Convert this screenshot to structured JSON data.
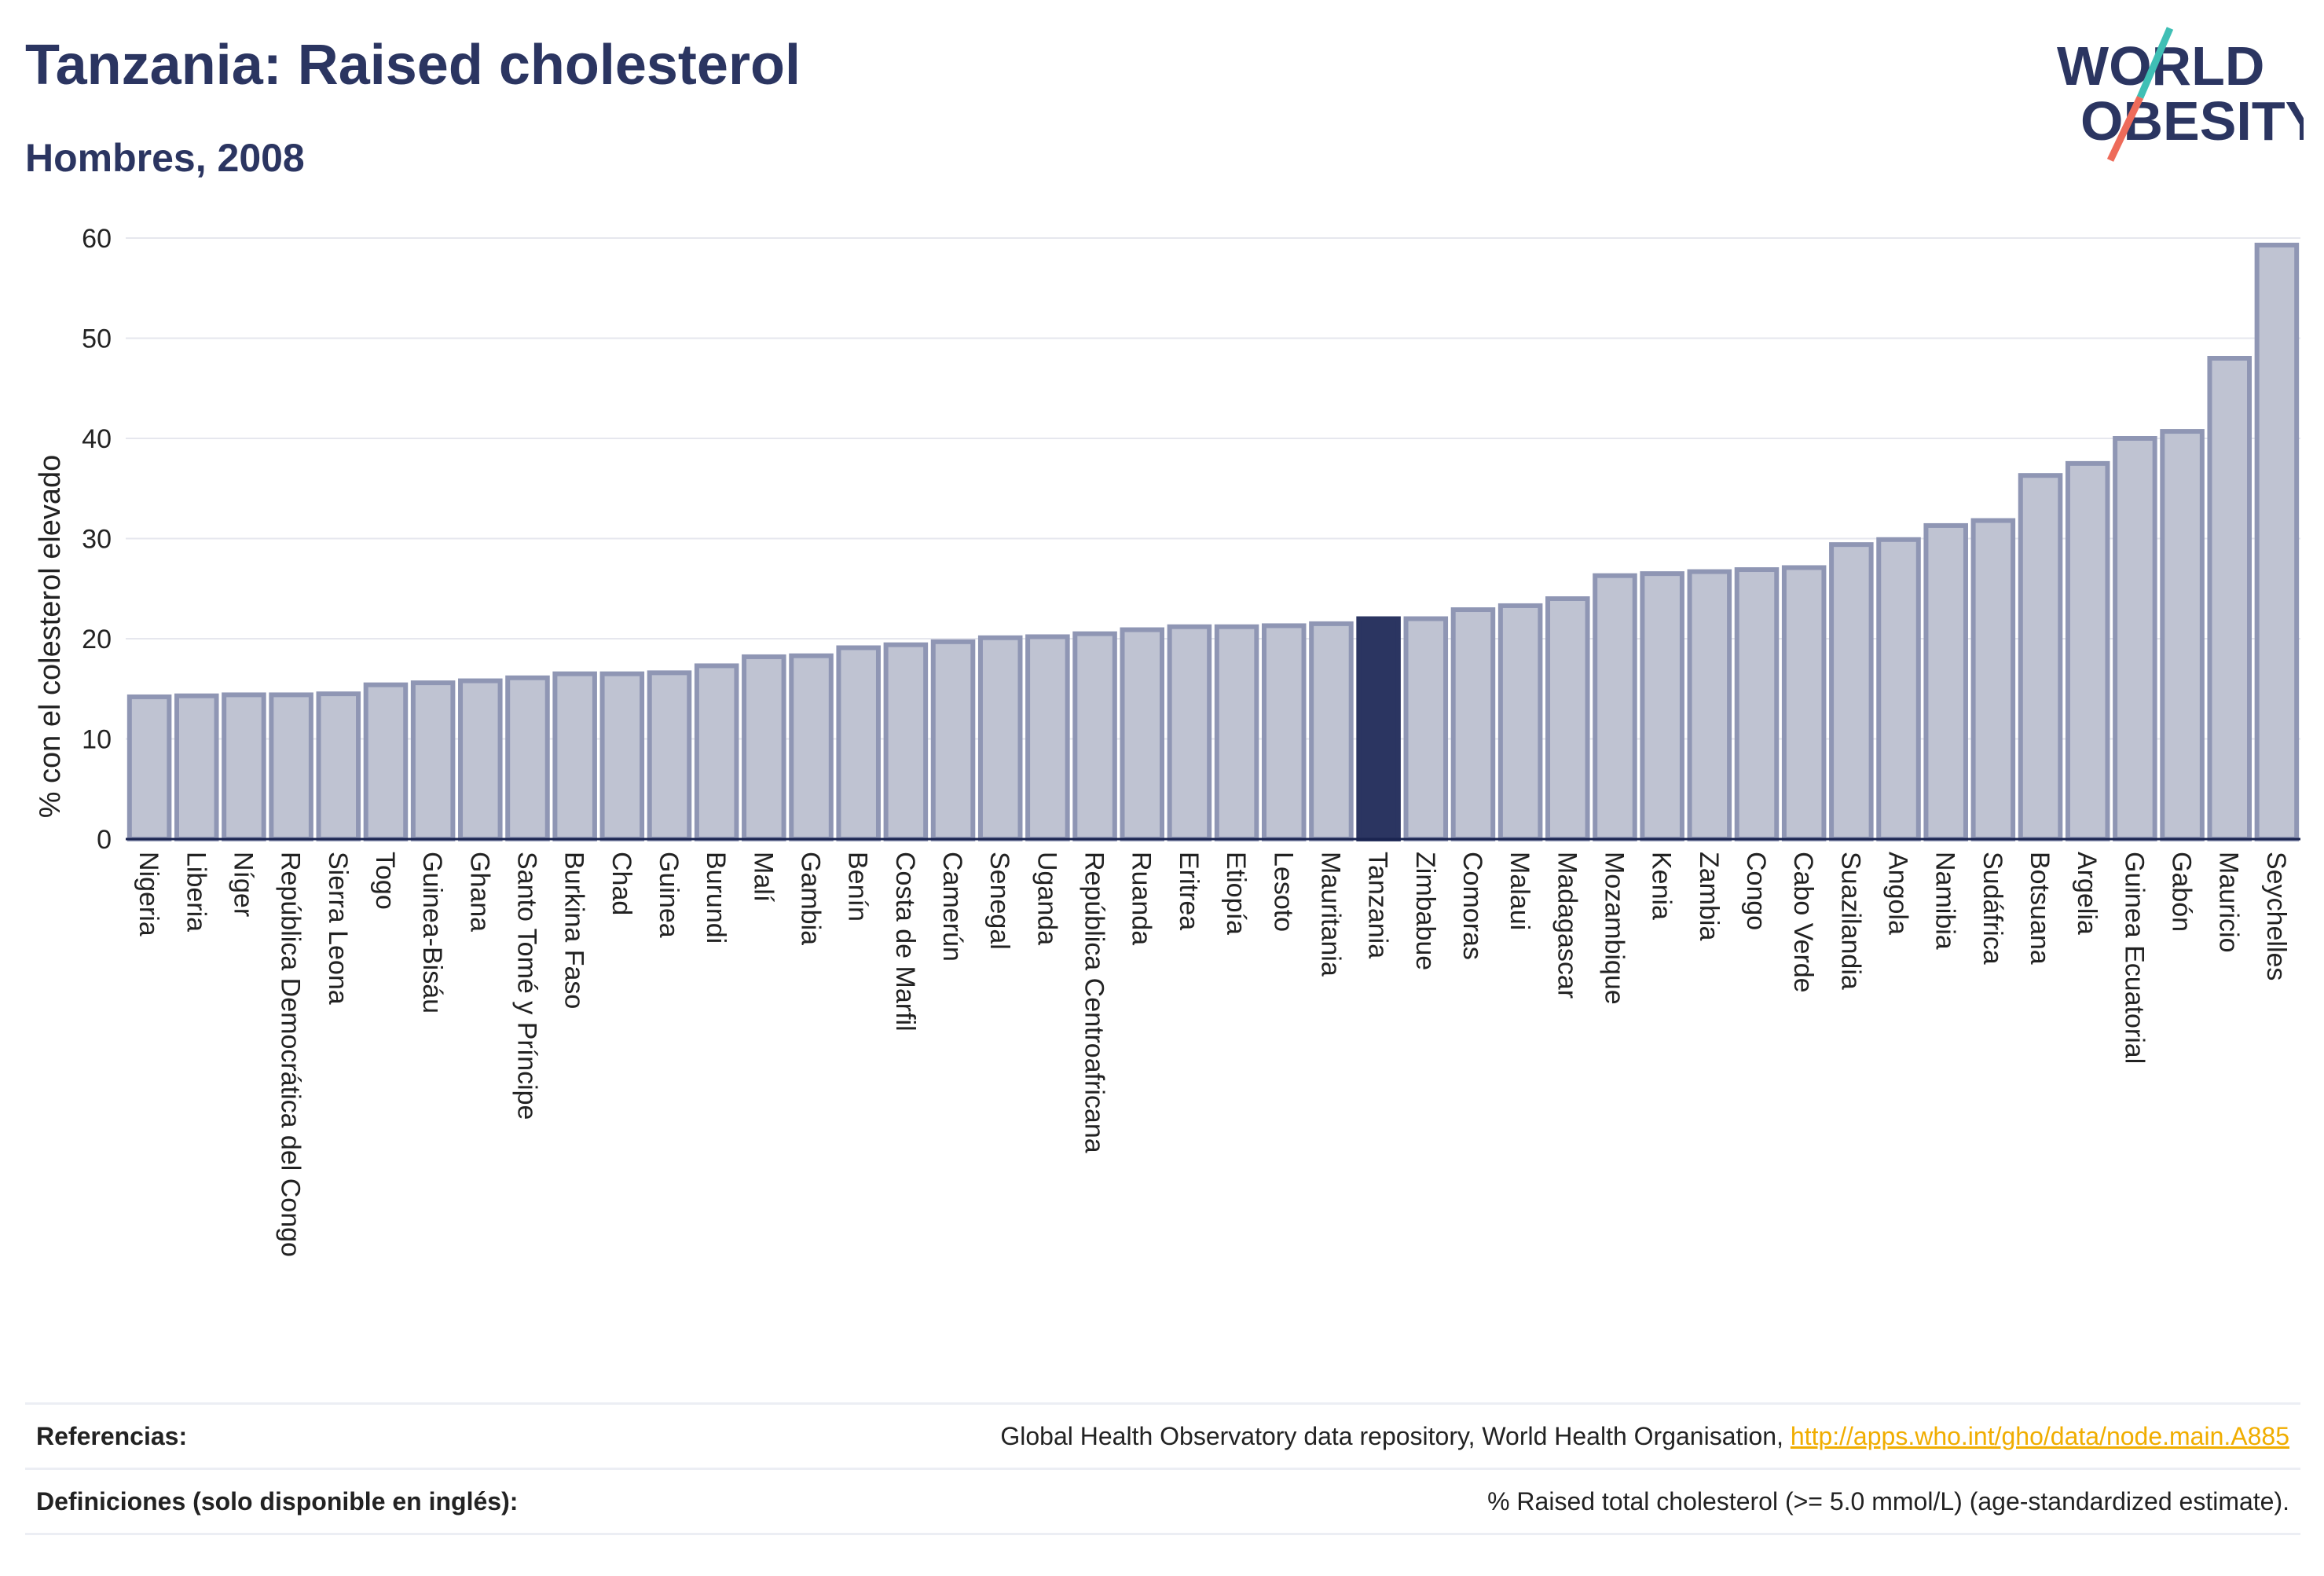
{
  "header": {
    "title": "Tanzania: Raised cholesterol",
    "subtitle": "Hombres, 2008"
  },
  "logo": {
    "line1": "WORLD",
    "line2": "OBESITY",
    "colors": {
      "text": "#2b3561",
      "slash_top": "#3fbfb5",
      "slash_bottom": "#ee6b5a"
    }
  },
  "colors": {
    "bar": "#bfc3d2",
    "bar_border": "#8f96b4",
    "highlight": "#2b3561",
    "grid": "#e6e7ee",
    "axis": "#1a2450",
    "text": "#222222"
  },
  "chart_data": {
    "type": "bar",
    "ylabel": "% con el colesterol elevado",
    "ylim": [
      0,
      60
    ],
    "yticks": [
      0,
      10,
      20,
      30,
      40,
      50,
      60
    ],
    "grid": true,
    "highlight": "Tanzania",
    "categories": [
      "Nigeria",
      "Liberia",
      "Níger",
      "República Democrática del Congo",
      "Sierra Leona",
      "Togo",
      "Guinea-Bisáu",
      "Ghana",
      "Santo Tomé y Príncipe",
      "Burkina Faso",
      "Chad",
      "Guinea",
      "Burundi",
      "Malí",
      "Gambia",
      "Benín",
      "Costa de Marfil",
      "Camerún",
      "Senegal",
      "Uganda",
      "República Centroafricana",
      "Ruanda",
      "Eritrea",
      "Etiopía",
      "Lesoto",
      "Mauritania",
      "Tanzania",
      "Zimbabue",
      "Comoras",
      "Malaui",
      "Madagascar",
      "Mozambique",
      "Kenia",
      "Zambia",
      "Congo",
      "Cabo Verde",
      "Suazilandia",
      "Angola",
      "Namibia",
      "Sudáfrica",
      "Botsuana",
      "Argelia",
      "Guinea Ecuatorial",
      "Gabón",
      "Mauricio",
      "Seychelles"
    ],
    "values": [
      14.2,
      14.3,
      14.4,
      14.4,
      14.5,
      15.4,
      15.6,
      15.8,
      16.1,
      16.5,
      16.5,
      16.6,
      17.3,
      18.2,
      18.3,
      19.1,
      19.4,
      19.7,
      20.1,
      20.2,
      20.5,
      20.9,
      21.2,
      21.2,
      21.3,
      21.5,
      22.0,
      22.0,
      22.9,
      23.3,
      24.0,
      26.3,
      26.5,
      26.7,
      26.9,
      27.1,
      29.4,
      29.9,
      31.3,
      31.8,
      36.3,
      37.5,
      40.0,
      40.7,
      48.0,
      59.3
    ]
  },
  "footer": {
    "references_label": "Referencias:",
    "references_text": "Global Health Observatory data repository, World Health Organisation, ",
    "references_link": "http://apps.who.int/gho/data/node.main.A885",
    "definitions_label": "Definiciones (solo disponible en inglés):",
    "definitions_text": "% Raised total cholesterol (>= 5.0 mmol/L) (age-standardized estimate)."
  }
}
